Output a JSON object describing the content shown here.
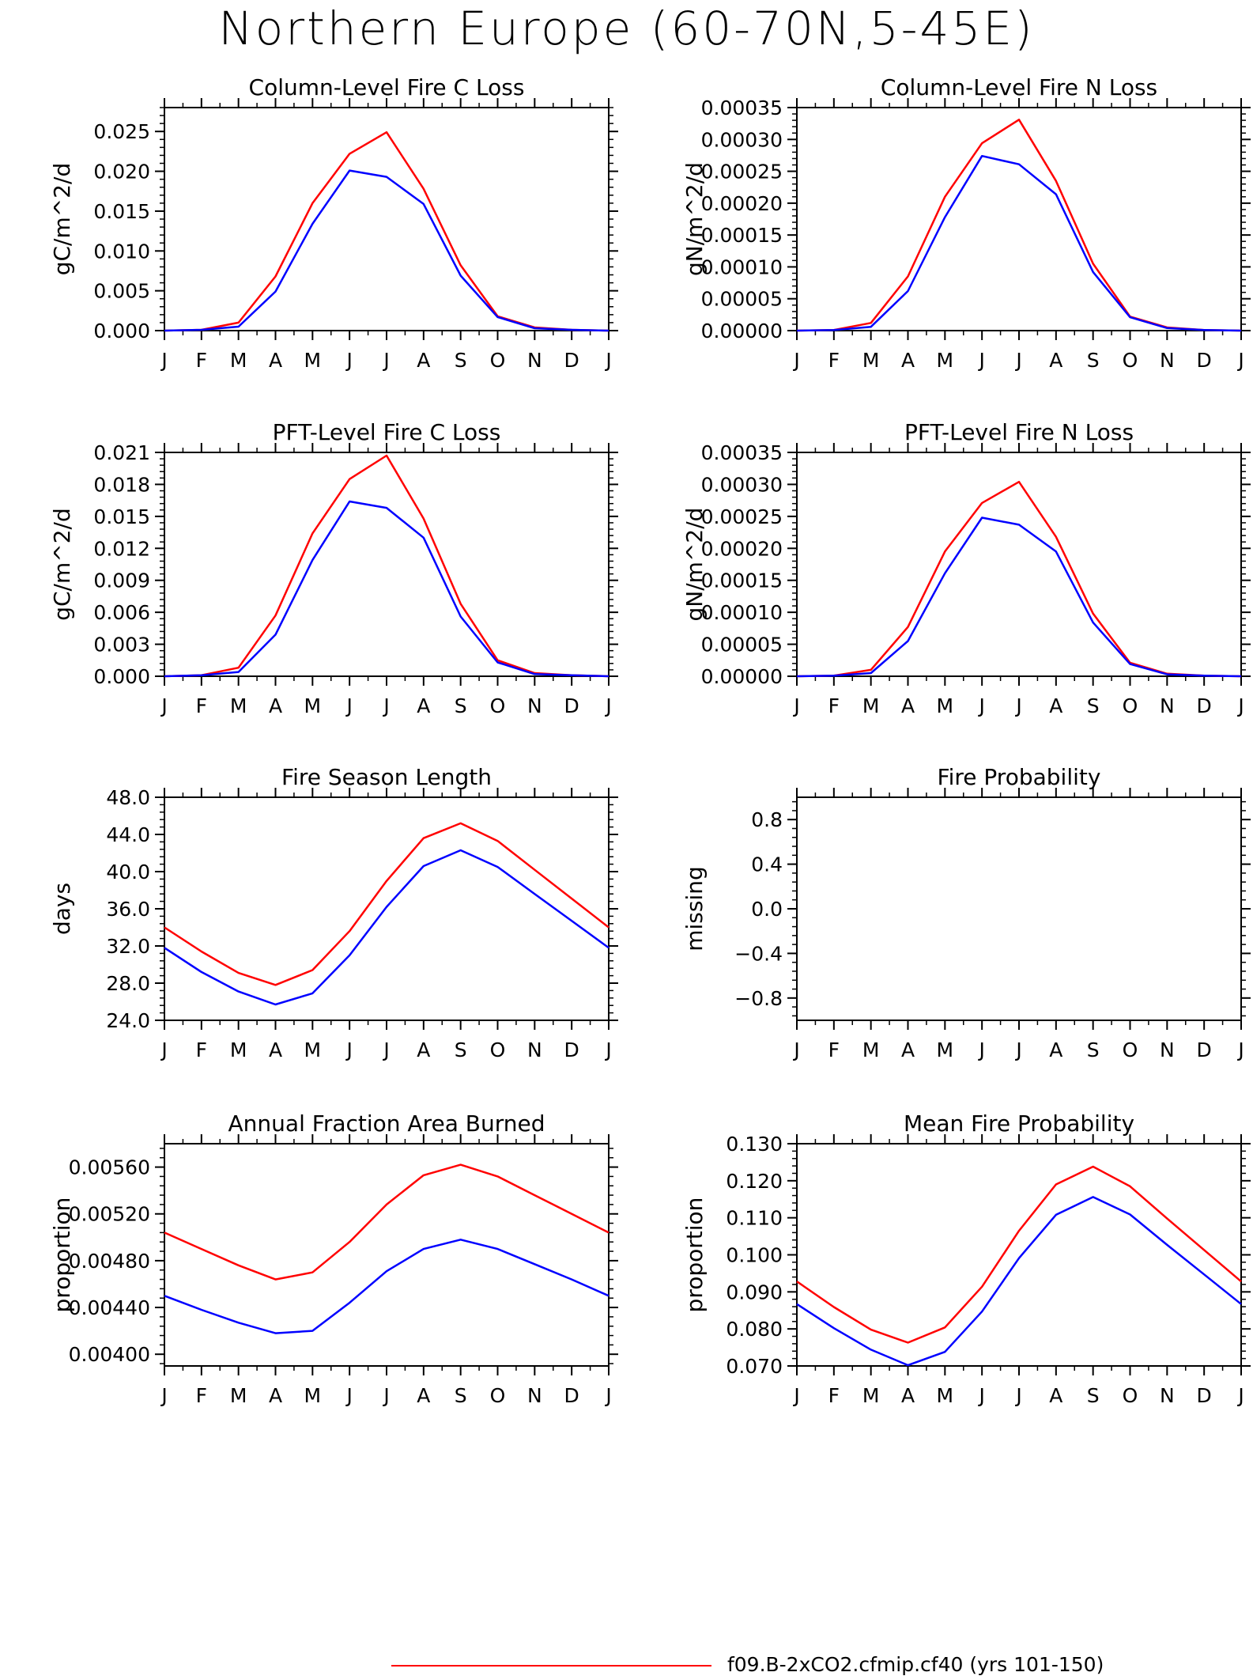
{
  "title": "Northern Europe (60-70N,5-45E)",
  "colors": {
    "case1": "#ff0000",
    "case2": "#0000ff",
    "axis": "#000000"
  },
  "legend": [
    {
      "label": "f09.B-2xCO2.cfmip.cf40 (yrs 101-150)",
      "color": "#ff0000"
    }
  ],
  "chart_data": [
    {
      "type": "line",
      "title": "Column-Level Fire C Loss",
      "ylabel": "gC/m^2/d",
      "x": [
        "J",
        "F",
        "M",
        "A",
        "M",
        "J",
        "J",
        "A",
        "S",
        "O",
        "N",
        "D",
        "J"
      ],
      "ylim": [
        0,
        0.028
      ],
      "yticks": [
        "0.000",
        "0.005",
        "0.010",
        "0.015",
        "0.020",
        "0.025"
      ],
      "series": [
        {
          "color": "#ff0000",
          "values": [
            0.0,
            0.0001,
            0.001,
            0.0068,
            0.016,
            0.0222,
            0.0249,
            0.0178,
            0.0082,
            0.0018,
            0.0004,
            0.0001,
            0.0
          ]
        },
        {
          "color": "#0000ff",
          "values": [
            0.0,
            0.0001,
            0.0005,
            0.0049,
            0.0134,
            0.0201,
            0.0193,
            0.0159,
            0.0069,
            0.0017,
            0.0003,
            0.0001,
            0.0
          ]
        }
      ]
    },
    {
      "type": "line",
      "title": "Column-Level Fire N Loss",
      "ylabel": "gN/m^2/d",
      "x": [
        "J",
        "F",
        "M",
        "A",
        "M",
        "J",
        "J",
        "A",
        "S",
        "O",
        "N",
        "D",
        "J"
      ],
      "ylim": [
        0,
        0.00035
      ],
      "yticks": [
        "0.00000",
        "0.00005",
        "0.00010",
        "0.00015",
        "0.00020",
        "0.00025",
        "0.00030",
        "0.00035"
      ],
      "series": [
        {
          "color": "#ff0000",
          "values": [
            0.0,
            1e-06,
            1.2e-05,
            8.5e-05,
            0.00021,
            0.000294,
            0.000331,
            0.000235,
            0.000105,
            2.2e-05,
            5e-06,
            1e-06,
            0.0
          ]
        },
        {
          "color": "#0000ff",
          "values": [
            0.0,
            1e-06,
            6e-06,
            6.2e-05,
            0.000178,
            0.000274,
            0.000261,
            0.000214,
            9.2e-05,
            2.1e-05,
            4e-06,
            1e-06,
            0.0
          ]
        }
      ]
    },
    {
      "type": "line",
      "title": "PFT-Level Fire C Loss",
      "ylabel": "gC/m^2/d",
      "x": [
        "J",
        "F",
        "M",
        "A",
        "M",
        "J",
        "J",
        "A",
        "S",
        "O",
        "N",
        "D",
        "J"
      ],
      "ylim": [
        0,
        0.021
      ],
      "yticks": [
        "0.000",
        "0.003",
        "0.006",
        "0.009",
        "0.012",
        "0.015",
        "0.018",
        "0.021"
      ],
      "series": [
        {
          "color": "#ff0000",
          "values": [
            0.0,
            0.0001,
            0.0008,
            0.0057,
            0.0134,
            0.0185,
            0.0207,
            0.0148,
            0.0068,
            0.0015,
            0.0003,
            0.0001,
            0.0
          ]
        },
        {
          "color": "#0000ff",
          "values": [
            0.0,
            0.0001,
            0.0004,
            0.0039,
            0.0109,
            0.0164,
            0.0158,
            0.013,
            0.0056,
            0.0013,
            0.0002,
            0.0001,
            0.0
          ]
        }
      ]
    },
    {
      "type": "line",
      "title": "PFT-Level Fire N Loss",
      "ylabel": "gN/m^2/d",
      "x": [
        "J",
        "F",
        "M",
        "A",
        "M",
        "J",
        "J",
        "A",
        "S",
        "O",
        "N",
        "D",
        "J"
      ],
      "ylim": [
        0,
        0.00035
      ],
      "yticks": [
        "0.00000",
        "0.00005",
        "0.00010",
        "0.00015",
        "0.00020",
        "0.00025",
        "0.00030",
        "0.00035"
      ],
      "series": [
        {
          "color": "#ff0000",
          "values": [
            0.0,
            1e-06,
            1e-05,
            7.7e-05,
            0.000195,
            0.000271,
            0.000304,
            0.000218,
            9.8e-05,
            2.1e-05,
            4e-06,
            1e-06,
            0.0
          ]
        },
        {
          "color": "#0000ff",
          "values": [
            0.0,
            1e-06,
            5e-06,
            5.5e-05,
            0.000161,
            0.000248,
            0.000237,
            0.000195,
            8.4e-05,
            1.9e-05,
            3e-06,
            1e-06,
            0.0
          ]
        }
      ]
    },
    {
      "type": "line",
      "title": "Fire Season Length",
      "ylabel": "days",
      "x": [
        "J",
        "F",
        "M",
        "A",
        "M",
        "J",
        "J",
        "A",
        "S",
        "O",
        "N",
        "D",
        "J"
      ],
      "ylim": [
        24,
        48
      ],
      "yticks": [
        "24.0",
        "28.0",
        "32.0",
        "36.0",
        "40.0",
        "44.0",
        "48.0"
      ],
      "series": [
        {
          "color": "#ff0000",
          "values": [
            34.0,
            31.4,
            29.1,
            27.8,
            29.4,
            33.6,
            39.0,
            43.6,
            45.2,
            43.3,
            40.2,
            37.1,
            34.0
          ]
        },
        {
          "color": "#0000ff",
          "values": [
            31.8,
            29.2,
            27.1,
            25.7,
            26.9,
            31.0,
            36.2,
            40.6,
            42.3,
            40.5,
            37.6,
            34.7,
            31.8
          ]
        }
      ]
    },
    {
      "type": "line",
      "title": "Fire Probability",
      "ylabel": "missing",
      "x": [
        "J",
        "F",
        "M",
        "A",
        "M",
        "J",
        "J",
        "A",
        "S",
        "O",
        "N",
        "D",
        "J"
      ],
      "ylim": [
        -1,
        1
      ],
      "yticks": [
        "-0.8",
        "-0.4",
        "0.0",
        "0.4",
        "0.8"
      ],
      "series": []
    },
    {
      "type": "line",
      "title": "Annual Fraction Area Burned",
      "ylabel": "proportion",
      "x": [
        "J",
        "F",
        "M",
        "A",
        "M",
        "J",
        "J",
        "A",
        "S",
        "O",
        "N",
        "D",
        "J"
      ],
      "ylim": [
        0.0039,
        0.0058
      ],
      "yticks": [
        "0.00400",
        "0.00440",
        "0.00480",
        "0.00520",
        "0.00560"
      ],
      "series": [
        {
          "color": "#ff0000",
          "values": [
            0.00504,
            0.0049,
            0.00476,
            0.00464,
            0.0047,
            0.00496,
            0.00528,
            0.00553,
            0.00562,
            0.00552,
            0.00536,
            0.0052,
            0.00504
          ]
        },
        {
          "color": "#0000ff",
          "values": [
            0.0045,
            0.00438,
            0.00427,
            0.00418,
            0.0042,
            0.00444,
            0.00471,
            0.0049,
            0.00498,
            0.0049,
            0.00477,
            0.00464,
            0.0045
          ]
        }
      ]
    },
    {
      "type": "line",
      "title": "Mean Fire Probability",
      "ylabel": "proportion",
      "x": [
        "J",
        "F",
        "M",
        "A",
        "M",
        "J",
        "J",
        "A",
        "S",
        "O",
        "N",
        "D",
        "J"
      ],
      "ylim": [
        0.07,
        0.13
      ],
      "yticks": [
        "0.070",
        "0.080",
        "0.090",
        "0.100",
        "0.110",
        "0.120",
        "0.130"
      ],
      "series": [
        {
          "color": "#ff0000",
          "values": [
            0.0928,
            0.0859,
            0.0798,
            0.0763,
            0.0804,
            0.0914,
            0.1065,
            0.119,
            0.1238,
            0.1185,
            0.1098,
            0.1013,
            0.0928
          ]
        },
        {
          "color": "#0000ff",
          "values": [
            0.0867,
            0.0802,
            0.0744,
            0.0702,
            0.0738,
            0.0847,
            0.0991,
            0.1108,
            0.1156,
            0.1109,
            0.1027,
            0.0947,
            0.0867
          ]
        }
      ]
    }
  ]
}
